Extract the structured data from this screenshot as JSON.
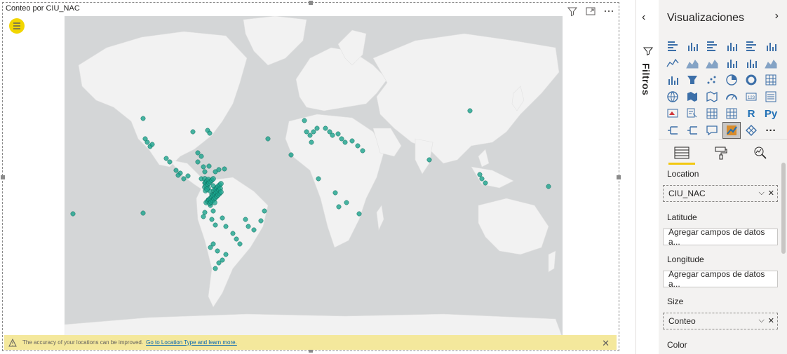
{
  "visual": {
    "title": "Conteo por CIU_NAC",
    "header_icons": [
      "filter-icon",
      "focus-mode-icon",
      "more-options-icon"
    ]
  },
  "map": {
    "bubble_color": "#1aa38c",
    "ocean_color": "#d4d6d7",
    "land_color": "#f2f2f2"
  },
  "warning": {
    "text": "The accuracy of your locations can be improved.",
    "link": "Go to Location Type and learn more."
  },
  "filters_pane": {
    "label": "Filtros"
  },
  "viz_pane": {
    "title": "Visualizaciones",
    "icons": [
      "stacked-bar-chart-icon",
      "stacked-column-chart-icon",
      "clustered-bar-chart-icon",
      "clustered-column-chart-icon",
      "100-stacked-bar-chart-icon",
      "100-stacked-column-chart-icon",
      "line-chart-icon",
      "area-chart-icon",
      "stacked-area-chart-icon",
      "line-and-column-chart-icon",
      "line-and-clustered-column-chart-icon",
      "ribbon-chart-icon",
      "waterfall-chart-icon",
      "funnel-icon",
      "scatter-chart-icon",
      "pie-chart-icon",
      "donut-chart-icon",
      "treemap-icon",
      "map-icon",
      "filled-map-icon",
      "shape-map-icon",
      "gauge-icon",
      "card-icon",
      "multi-row-card-icon",
      "kpi-icon",
      "slicer-icon",
      "table-icon",
      "matrix-icon",
      "r-visual-icon",
      "python-visual-icon",
      "key-influencers-icon",
      "decomposition-tree-icon",
      "qa-icon",
      "arcgis-map-icon",
      "power-apps-icon",
      "more-visuals-icon"
    ],
    "r_glyph": "R",
    "py_glyph": "Py",
    "more_glyph": "···",
    "tabs": [
      "fields-tab-icon",
      "format-tab-icon",
      "analytics-tab-icon"
    ],
    "wells": [
      {
        "label": "Location",
        "value": "CIU_NAC",
        "filled": true
      },
      {
        "label": "Latitude",
        "value": "Agregar campos de datos a...",
        "filled": false
      },
      {
        "label": "Longitude",
        "value": "Agregar campos de datos a...",
        "filled": false
      },
      {
        "label": "Size",
        "value": "Conteo",
        "filled": true
      },
      {
        "label": "Color",
        "value": "",
        "filled": false
      }
    ]
  }
}
